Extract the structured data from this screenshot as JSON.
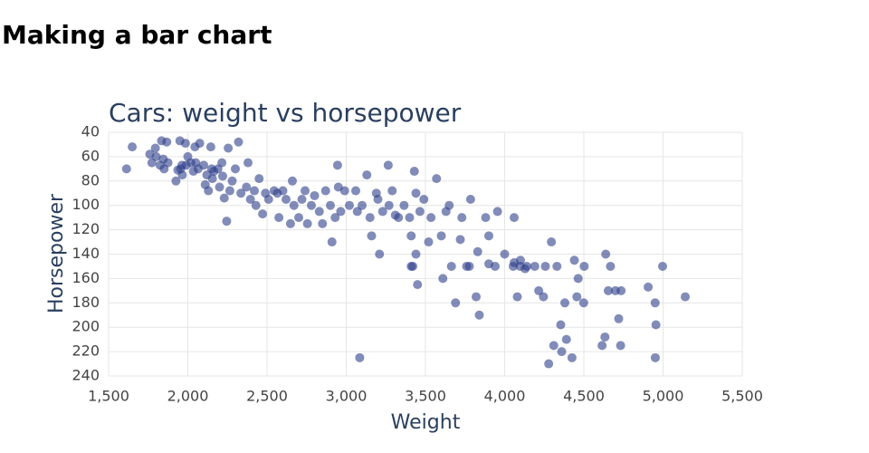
{
  "page_title": "Making a bar chart",
  "chart_data": {
    "type": "scatter",
    "title": "Cars: weight vs horsepower",
    "x_label": "Weight",
    "y_label": "Horsepower",
    "color": "#2f3f8a",
    "grid": true,
    "xlim": [
      1500,
      5500
    ],
    "xticks": [
      {
        "value": 1500,
        "label": "1,500"
      },
      {
        "value": 2000,
        "label": "2,000"
      },
      {
        "value": 2500,
        "label": "2,500"
      },
      {
        "value": 3000,
        "label": "3,000"
      },
      {
        "value": 3500,
        "label": "3,500"
      },
      {
        "value": 4000,
        "label": "4,000"
      },
      {
        "value": 4500,
        "label": "4,500"
      },
      {
        "value": 5000,
        "label": "5,000"
      },
      {
        "value": 5500,
        "label": "5,500"
      }
    ],
    "ylim": [
      240,
      40
    ],
    "yticks": [
      40,
      60,
      80,
      100,
      120,
      140,
      160,
      180,
      200,
      220,
      240
    ],
    "x": [
      1613,
      1649,
      1760,
      1773,
      1795,
      1800,
      1825,
      1834,
      1845,
      1850,
      1867,
      1875,
      1925,
      1937,
      1950,
      1955,
      1963,
      1965,
      1985,
      1990,
      2000,
      2020,
      2035,
      2045,
      2050,
      2065,
      2075,
      2100,
      2110,
      2120,
      2130,
      2145,
      2150,
      2155,
      2164,
      2190,
      2200,
      2215,
      2220,
      2230,
      2245,
      2255,
      2265,
      2280,
      2300,
      2320,
      2335,
      2370,
      2380,
      2395,
      2420,
      2430,
      2450,
      2472,
      2490,
      2510,
      2545,
      2565,
      2575,
      2600,
      2620,
      2648,
      2660,
      2670,
      2700,
      2720,
      2740,
      2755,
      2780,
      2800,
      2830,
      2850,
      2870,
      2900,
      2910,
      2930,
      2945,
      2950,
      2965,
      2990,
      3020,
      3060,
      3070,
      3085,
      3100,
      3130,
      3150,
      3160,
      3190,
      3200,
      3210,
      3230,
      3265,
      3270,
      3290,
      3310,
      3330,
      3365,
      3400,
      3410,
      3420,
      3430,
      3440,
      3450,
      3465,
      3490,
      3520,
      3535,
      3570,
      3600,
      3610,
      3630,
      3650,
      3664,
      3690,
      3720,
      3730,
      3760,
      3785,
      3820,
      3830,
      3840,
      3880,
      3900,
      3940,
      3955,
      4000,
      4054,
      4060,
      4080,
      4100,
      4129,
      4190,
      4215,
      4245,
      4257,
      4278,
      4295,
      4310,
      4330,
      4354,
      4360,
      4380,
      4390,
      4425,
      4440,
      4456,
      4464,
      4499,
      4502,
      4615,
      4633,
      4638,
      4654,
      4668,
      4699,
      4720,
      4732,
      4735,
      4906,
      4950,
      4951,
      4955,
      4997,
      5140,
      4060,
      4098,
      4140,
      3900,
      3777,
      3410,
      3440
    ],
    "values": [
      70,
      52,
      58,
      65,
      53,
      60,
      67,
      47,
      62,
      70,
      48,
      65,
      80,
      71,
      47,
      70,
      67,
      75,
      49,
      67,
      60,
      65,
      72,
      52,
      65,
      70,
      49,
      67,
      83,
      75,
      88,
      52,
      70,
      78,
      72,
      70,
      85,
      65,
      76,
      94,
      113,
      53,
      88,
      80,
      70,
      48,
      90,
      85,
      65,
      95,
      88,
      100,
      78,
      107,
      90,
      95,
      88,
      90,
      110,
      88,
      95,
      115,
      80,
      100,
      110,
      95,
      88,
      115,
      100,
      92,
      105,
      115,
      88,
      100,
      130,
      110,
      67,
      85,
      105,
      88,
      100,
      88,
      105,
      225,
      100,
      75,
      110,
      125,
      90,
      95,
      140,
      105,
      67,
      100,
      88,
      108,
      110,
      100,
      110,
      125,
      150,
      72,
      90,
      165,
      105,
      95,
      130,
      110,
      78,
      125,
      160,
      105,
      100,
      150,
      180,
      128,
      110,
      150,
      95,
      175,
      138,
      190,
      110,
      125,
      150,
      105,
      140,
      150,
      110,
      175,
      145,
      152,
      150,
      170,
      175,
      150,
      230,
      130,
      215,
      150,
      198,
      220,
      180,
      210,
      225,
      145,
      175,
      160,
      180,
      150,
      215,
      208,
      140,
      170,
      150,
      170,
      193,
      215,
      170,
      167,
      180,
      225,
      198,
      150,
      175,
      147,
      150,
      150,
      148,
      150,
      150,
      140
    ]
  }
}
